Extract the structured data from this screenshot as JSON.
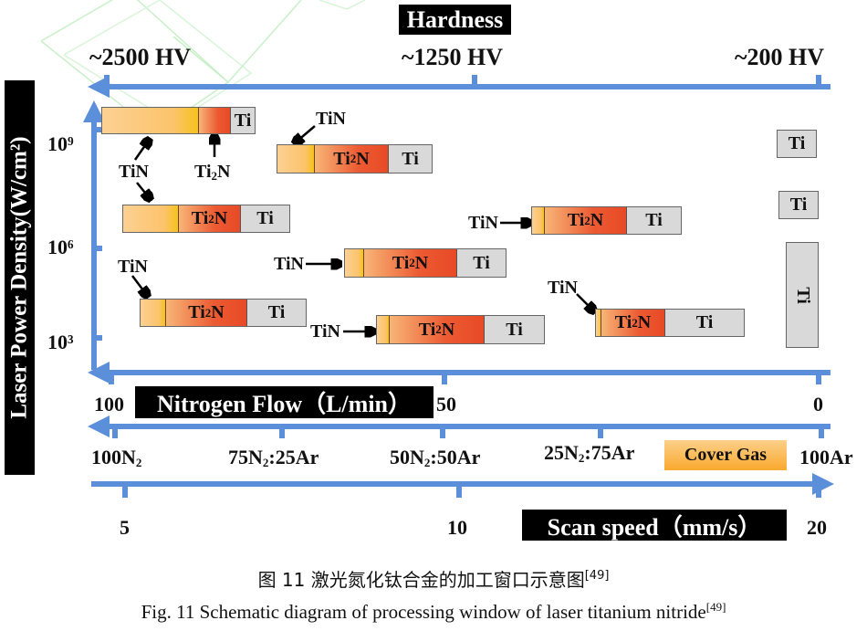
{
  "hardness": {
    "title": "Hardness",
    "ticks": [
      "~2500 HV",
      "~1250 HV",
      "~200 HV"
    ]
  },
  "y_axis": {
    "title": "Laser Power Density(W/cm²)",
    "ticks": [
      "10⁹",
      "10⁶",
      "10³"
    ]
  },
  "nitrogen_flow": {
    "title": "Nitrogen Flow（L/min）",
    "ticks": [
      "100",
      "50",
      "0"
    ]
  },
  "cover_gas": {
    "title": "Cover Gas",
    "ticks": [
      "100N",
      "75N",
      ":25Ar",
      "50N",
      ":50Ar",
      "25N",
      ":75Ar",
      "100Ar"
    ],
    "subscript": "2"
  },
  "scan_speed": {
    "title": "Scan speed（mm/s）",
    "ticks": [
      "5",
      "10",
      "20"
    ]
  },
  "phases": {
    "tin": "TiN",
    "ti2n_a": "Ti",
    "ti2n_sub": "2",
    "ti2n_b": "N",
    "ti": "Ti"
  },
  "colors": {
    "axis": "#5b8fd9",
    "tin": "#fcc36b",
    "ti2n": "#e84a26",
    "ti": "#d9d9d9",
    "cover_gas": "#fbb040"
  },
  "caption": {
    "zh": "图 11  激光氮化钛合金的加工窗口示意图",
    "en": "Fig. 11 Schematic diagram of processing window of laser titanium nitride",
    "ref": "[49]"
  }
}
